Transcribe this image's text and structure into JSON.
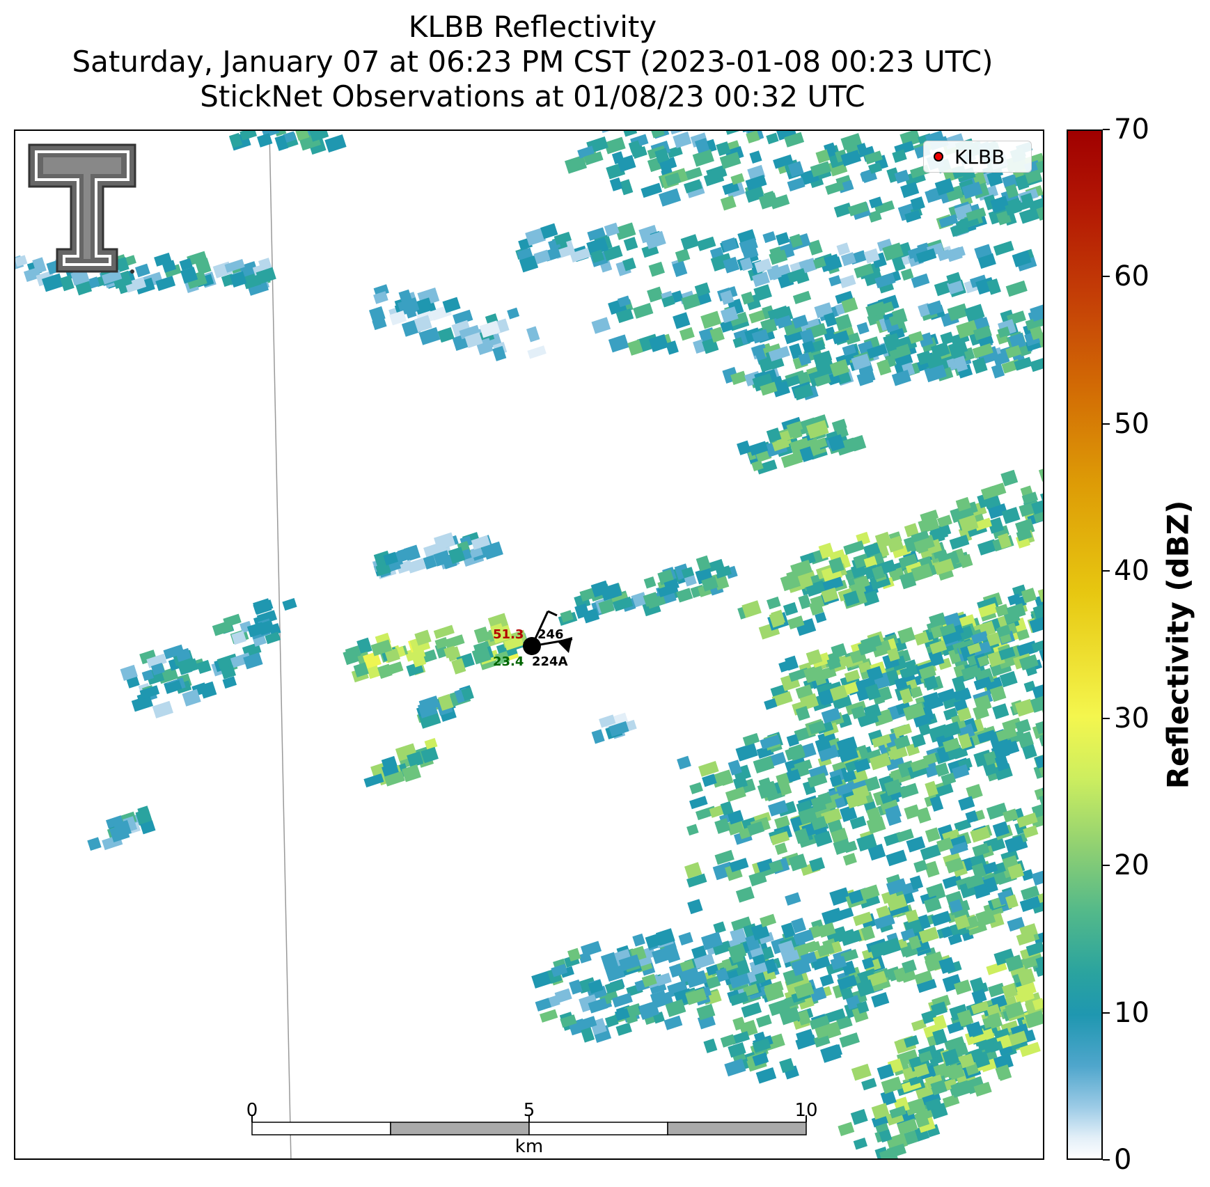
{
  "title": {
    "line1": "KLBB Reflectivity",
    "line2": "Saturday, January 07 at 06:23 PM CST (2023-01-08 00:23 UTC)",
    "line3": "StickNet Observations at 01/08/23 00:32 UTC"
  },
  "legend": {
    "label": "KLBB",
    "marker_color": "#ee0000"
  },
  "station": {
    "temperature": "51.3",
    "temperature_color": "#b30000",
    "dewpoint": "23.4",
    "dewpoint_color": "#006400",
    "pressure_code": "246",
    "station_id": "224A"
  },
  "scalebar": {
    "ticks": [
      "0",
      "5",
      "10"
    ],
    "unit": "km"
  },
  "colorbar": {
    "label": "Reflectivity (dBZ)",
    "ticks": [
      "0",
      "10",
      "20",
      "30",
      "40",
      "50",
      "60",
      "70"
    ],
    "min": 0,
    "max": 70
  },
  "logo": {
    "name": "Texas Tech Double T"
  }
}
